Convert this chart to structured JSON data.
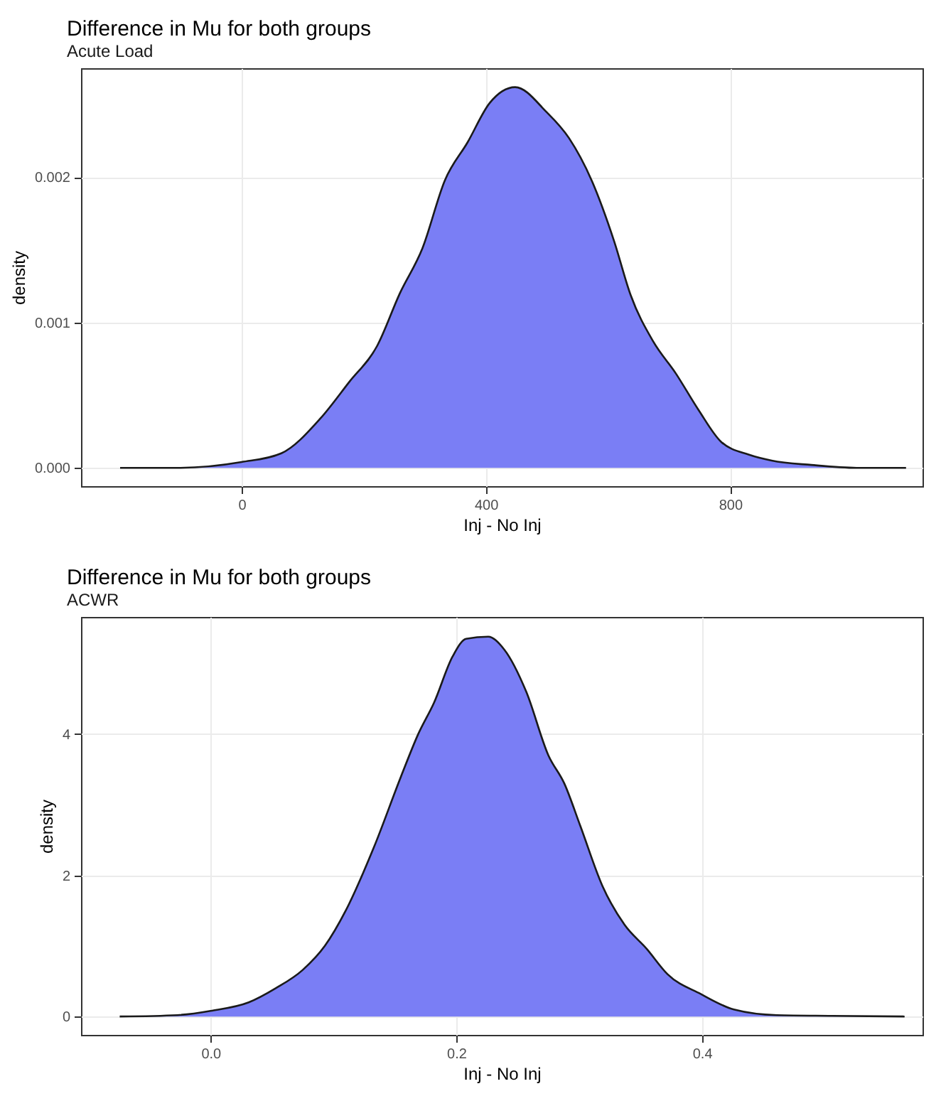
{
  "chart_data": [
    {
      "type": "area",
      "title": "Difference in Mu for both groups",
      "subtitle": "Acute Load",
      "xlabel": "Inj - No Inj",
      "ylabel": "density",
      "xlim": [
        -263,
        1115
      ],
      "ylim": [
        -0.000126,
        0.00275
      ],
      "xticks": [
        0,
        400,
        800
      ],
      "yticks": [
        {
          "value": 0,
          "label": "0.000"
        },
        {
          "value": 0.001,
          "label": "0.001"
        },
        {
          "value": 0.002,
          "label": "0.002"
        }
      ],
      "grid": true,
      "x": [
        -199,
        -102,
        0,
        65,
        129,
        176,
        222,
        259,
        296,
        333,
        370,
        406,
        448,
        499,
        536,
        573,
        610,
        637,
        674,
        711,
        748,
        785,
        831,
        868,
        933,
        1007,
        1088
      ],
      "series": [
        {
          "color": "#7a7ef5",
          "values": [
            0,
            0,
            4e-05,
            0.0001,
            0.00034,
            0.00059,
            0.00084,
            0.0012,
            0.00151,
            0.00198,
            0.00224,
            0.00251,
            0.00262,
            0.00245,
            0.00227,
            0.00198,
            0.00156,
            0.00119,
            0.00087,
            0.00065,
            0.0004,
            0.00018,
            9e-05,
            5e-05,
            2e-05,
            0,
            0
          ]
        }
      ]
    },
    {
      "type": "area",
      "title": "Difference in Mu for both groups",
      "subtitle": "ACWR",
      "xlabel": "Inj - No Inj",
      "ylabel": "density",
      "xlim": [
        -0.1055,
        0.5796
      ],
      "ylim": [
        -0.26,
        5.66
      ],
      "xticks": [
        {
          "value": 0,
          "label": "0.0"
        },
        0.2,
        0.4
      ],
      "yticks": [
        0,
        2,
        4
      ],
      "grid": true,
      "x": [
        -0.074,
        -0.027,
        0,
        0.031,
        0.053,
        0.075,
        0.093,
        0.11,
        0.133,
        0.155,
        0.169,
        0.182,
        0.197,
        0.208,
        0.226,
        0.239,
        0.257,
        0.275,
        0.288,
        0.301,
        0.319,
        0.337,
        0.355,
        0.372,
        0.399,
        0.426,
        0.461,
        0.506,
        0.565
      ],
      "series": [
        {
          "color": "#7a7ef5",
          "values": [
            0,
            0.02,
            0.08,
            0.2,
            0.4,
            0.66,
            1.0,
            1.5,
            2.4,
            3.4,
            4.0,
            4.45,
            5.1,
            5.35,
            5.38,
            5.2,
            4.6,
            3.7,
            3.3,
            2.7,
            1.85,
            1.3,
            0.96,
            0.6,
            0.32,
            0.1,
            0.02,
            0.01,
            0
          ]
        }
      ]
    }
  ]
}
